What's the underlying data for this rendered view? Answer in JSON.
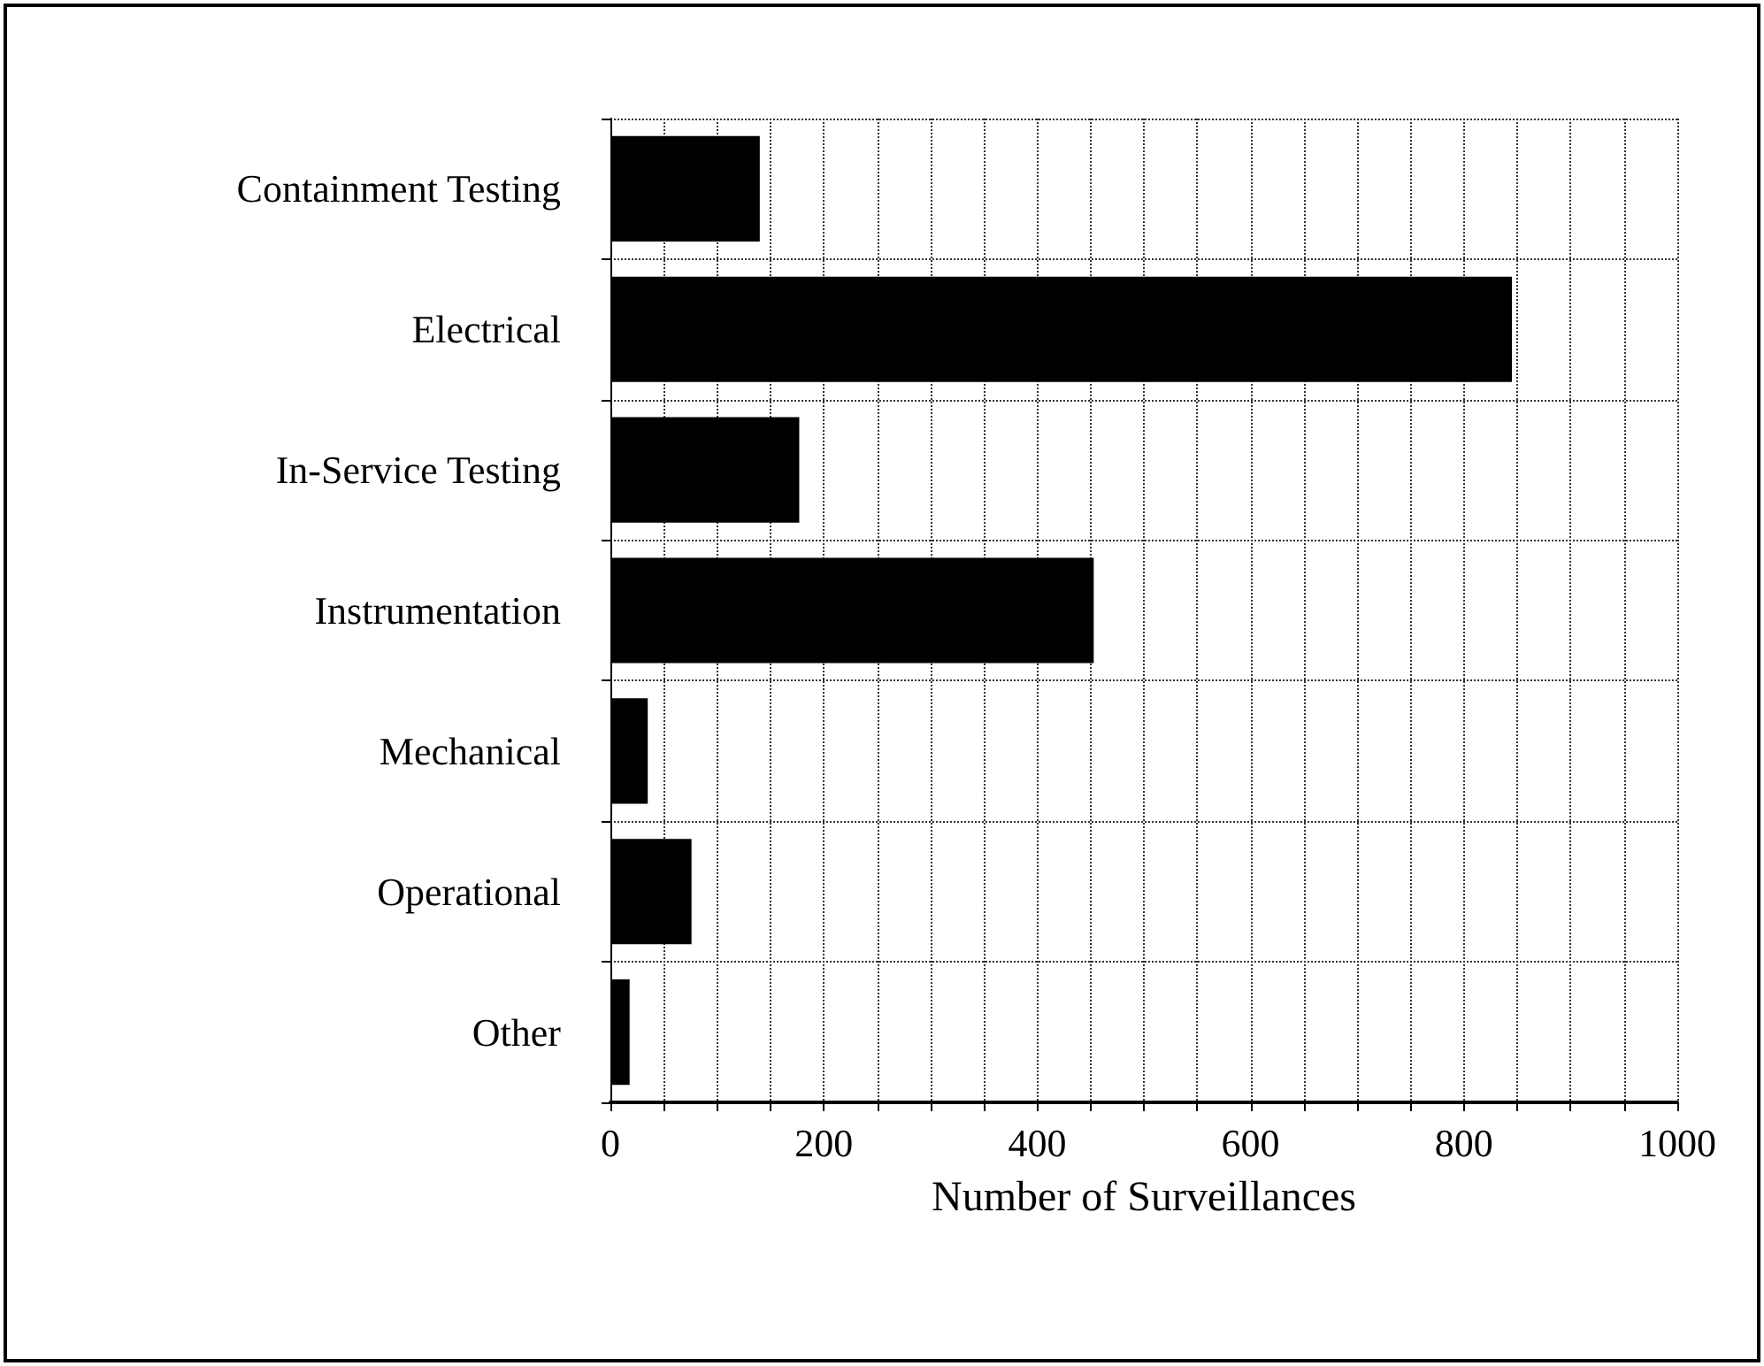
{
  "chart_data": {
    "type": "bar",
    "orientation": "horizontal",
    "xlabel": "Number of Surveillances",
    "categories": [
      "Containment Testing",
      "Electrical",
      "In-Service Testing",
      "Instrumentation",
      "Mechanical",
      "Operational",
      "Other"
    ],
    "values": [
      140,
      845,
      177,
      453,
      35,
      76,
      18
    ],
    "color": "#000000",
    "xlim": [
      0,
      1000
    ],
    "xticks": [
      0,
      {
        "value": 50,
        "label": null
      },
      200,
      {
        "value": 100,
        "label": null
      },
      {
        "value": 150,
        "label": null
      },
      {
        "value": 250,
        "label": null
      },
      {
        "value": 300,
        "label": null
      },
      {
        "value": 350,
        "label": null
      },
      400,
      {
        "value": 450,
        "label": null
      },
      {
        "value": 500,
        "label": null
      },
      {
        "value": 550,
        "label": null
      },
      600,
      {
        "value": 650,
        "label": null
      },
      {
        "value": 700,
        "label": null
      },
      {
        "value": 750,
        "label": null
      },
      800,
      {
        "value": 850,
        "label": null
      },
      {
        "value": 900,
        "label": null
      },
      {
        "value": 950,
        "label": null
      },
      1000
    ],
    "grid": true
  }
}
